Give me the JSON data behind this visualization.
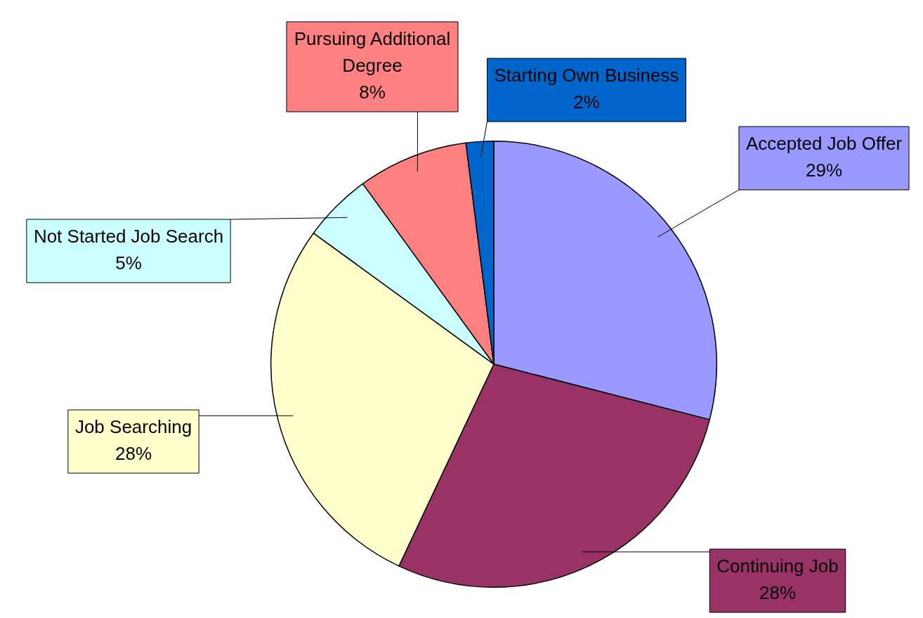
{
  "chart_data": {
    "type": "pie",
    "categories": [
      "Accepted Job Offer",
      "Continuing Job",
      "Job Searching",
      "Not Started Job Search",
      "Pursuing Additional Degree",
      "Starting Own Business"
    ],
    "values": [
      29,
      28,
      28,
      5,
      8,
      2
    ],
    "colors": [
      "#9999ff",
      "#993366",
      "#ffffcc",
      "#ccffff",
      "#ff8080",
      "#0066cc"
    ],
    "value_labels": [
      "29%",
      "28%",
      "28%",
      "5%",
      "8%",
      "2%"
    ],
    "legend": false
  }
}
